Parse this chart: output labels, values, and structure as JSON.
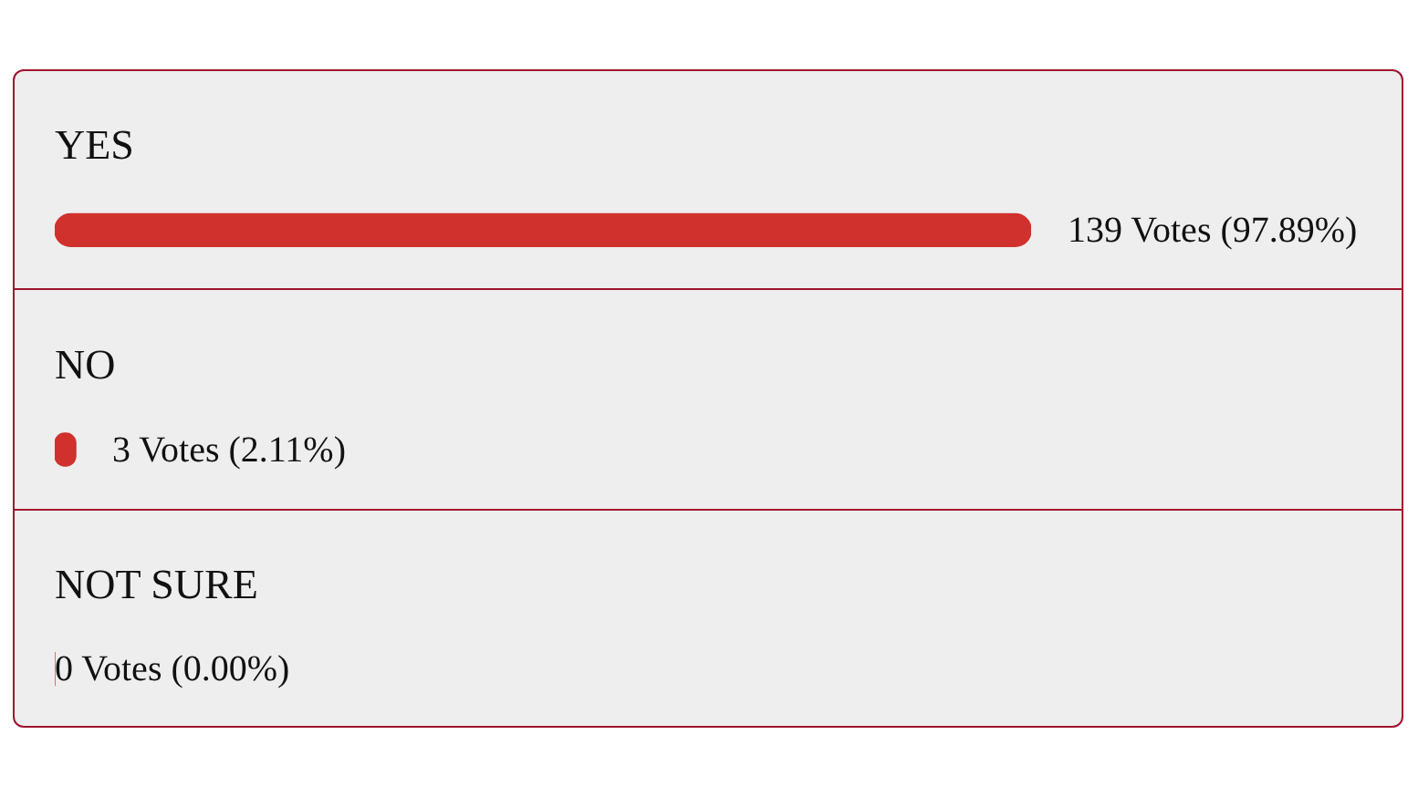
{
  "chart_data": {
    "type": "bar",
    "orientation": "horizontal",
    "categories": [
      "YES",
      "NO",
      "NOT SURE"
    ],
    "values": [
      139,
      3,
      0
    ],
    "color": "#d0312d",
    "value_labels": [
      "139 Votes (97.89%)",
      "3 Votes (2.11%)",
      "0 Votes (0.00%)"
    ]
  }
}
